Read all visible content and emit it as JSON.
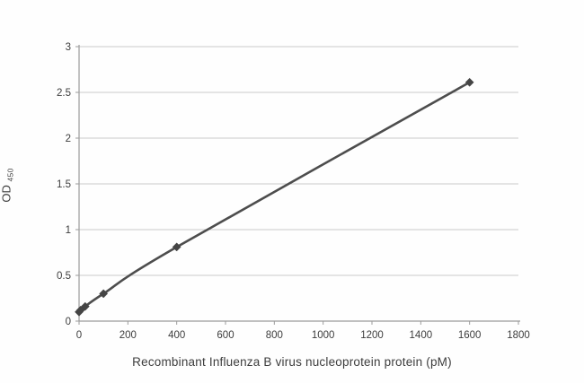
{
  "figure": {
    "background": "#fefefe"
  },
  "chart_data": {
    "type": "scatter",
    "subtype": "smooth-line-with-diamond-markers",
    "title": "",
    "xlabel": "Recombinant Influenza B virus nucleoprotein protein (pM)",
    "ylabel_main": "OD",
    "ylabel_sub": "450",
    "xlim": [
      0,
      1800
    ],
    "ylim": [
      0,
      3
    ],
    "x_ticks": [
      {
        "v": 0,
        "label": "0"
      },
      {
        "v": 200,
        "label": "200"
      },
      {
        "v": 400,
        "label": "400"
      },
      {
        "v": 600,
        "label": "600"
      },
      {
        "v": 800,
        "label": "800"
      },
      {
        "v": 1000,
        "label": "1000"
      },
      {
        "v": 1200,
        "label": "1200"
      },
      {
        "v": 1400,
        "label": "1400"
      },
      {
        "v": 1600,
        "label": "1600"
      },
      {
        "v": 1800,
        "label": "1800"
      }
    ],
    "y_ticks": [
      {
        "v": 0,
        "label": "0"
      },
      {
        "v": 0.5,
        "label": "0.5"
      },
      {
        "v": 1,
        "label": "1"
      },
      {
        "v": 1.5,
        "label": "1.5"
      },
      {
        "v": 2,
        "label": "2"
      },
      {
        "v": 2.5,
        "label": "2.5"
      },
      {
        "v": 3,
        "label": "3"
      }
    ],
    "grid": "horizontal-only",
    "legend": "none",
    "series": [
      {
        "name": "standard-curve",
        "marker": "diamond",
        "points": [
          {
            "x": 0,
            "y": 0.1
          },
          {
            "x": 6.25,
            "y": 0.12
          },
          {
            "x": 25,
            "y": 0.16
          },
          {
            "x": 100,
            "y": 0.3
          },
          {
            "x": 400,
            "y": 0.81
          },
          {
            "x": 1600,
            "y": 2.61
          }
        ]
      }
    ],
    "colors": {
      "line": "#4d4d4d",
      "marker": "#454545",
      "grid": "#c9c9c9",
      "axis": "#9b9b9b",
      "text": "#3d3d3d"
    }
  }
}
